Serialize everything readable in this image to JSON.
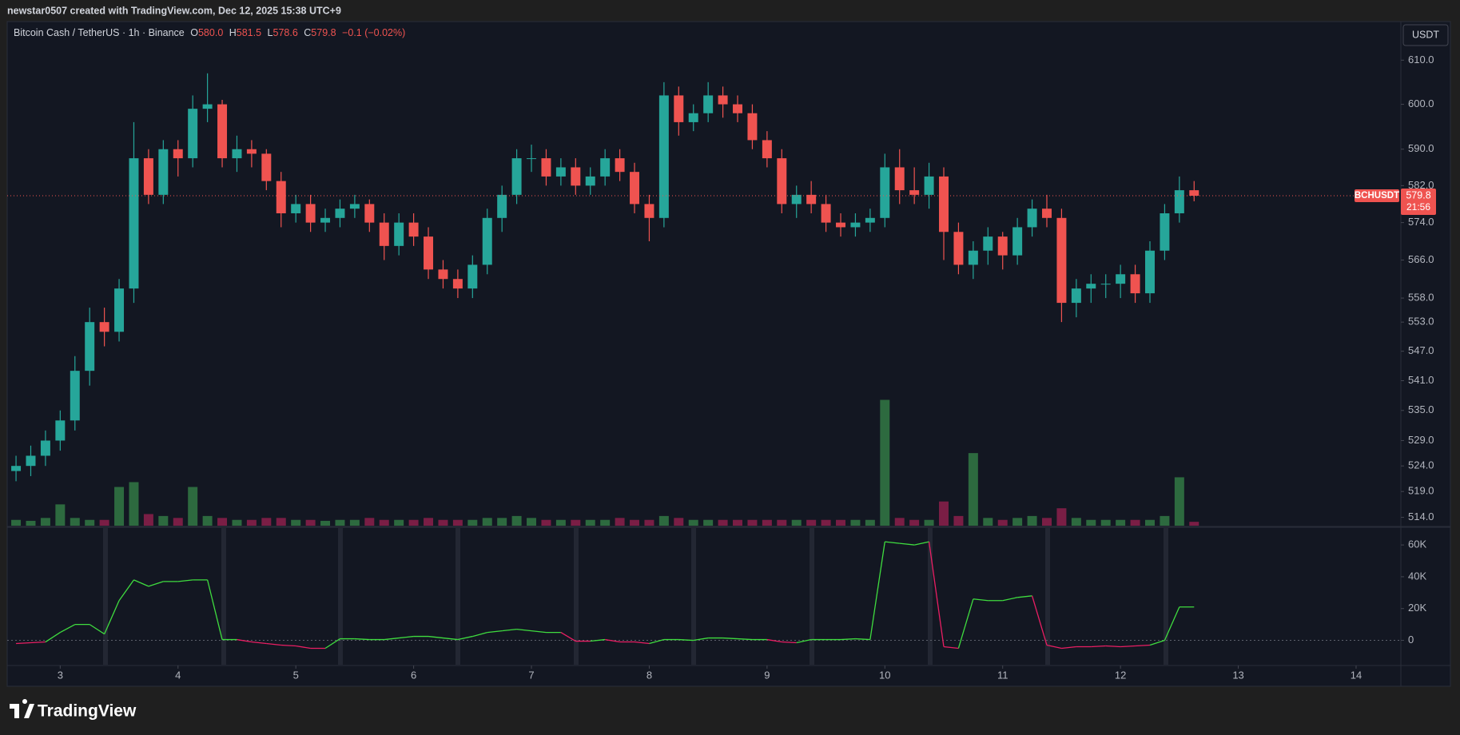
{
  "header": "newstar0507 created with TradingView.com, Dec 12, 2025 15:38 UTC+9",
  "legend": {
    "symbol": "Bitcoin Cash / TetherUS · 1h · Binance",
    "o_label": "O",
    "open": "580.0",
    "h_label": "H",
    "high": "581.5",
    "l_label": "L",
    "low": "578.6",
    "c_label": "C",
    "close": "579.8",
    "change": "−0.1 (−0.02%)"
  },
  "currency_button": "USDT",
  "price_line": {
    "label": "BCHUSDT",
    "value": 579.8,
    "countdown": "21:56",
    "color": "#ef5350"
  },
  "footer": "TradingView",
  "chart_data": [
    {
      "type": "candlestick",
      "log": true,
      "grid": false,
      "up_color": "#26a69a",
      "down_color": "#ef5350",
      "volume_up_color": "#2d6a3f",
      "volume_down_color": "#7a1e45",
      "x": [
        2.625,
        2.75,
        2.875,
        3,
        3.125,
        3.25,
        3.375,
        3.5,
        3.625,
        3.75,
        3.875,
        4,
        4.125,
        4.25,
        4.375,
        4.5,
        4.625,
        4.75,
        4.875,
        5,
        5.125,
        5.25,
        5.375,
        5.5,
        5.625,
        5.75,
        5.875,
        6,
        6.125,
        6.25,
        6.375,
        6.5,
        6.625,
        6.75,
        6.875,
        7,
        7.125,
        7.25,
        7.375,
        7.5,
        7.625,
        7.75,
        7.875,
        8,
        8.125,
        8.25,
        8.375,
        8.5,
        8.625,
        8.75,
        8.875,
        9,
        9.125,
        9.25,
        9.375,
        9.5,
        9.625,
        9.75,
        9.875,
        10,
        10.125,
        10.25,
        10.375,
        10.5,
        10.625,
        10.75,
        10.875,
        11,
        11.125,
        11.25,
        11.375,
        11.5,
        11.625,
        11.75,
        11.875,
        12,
        12.125,
        12.25,
        12.375,
        12.5,
        12.625
      ],
      "open": [
        523,
        524,
        526,
        529,
        533,
        543,
        553,
        551,
        560,
        588,
        580,
        590,
        588,
        599,
        600,
        588,
        590,
        589,
        583,
        576,
        578,
        574,
        575,
        577,
        578,
        574,
        569,
        574,
        571,
        564,
        562,
        560,
        565,
        575,
        580,
        588,
        588,
        584,
        586,
        582,
        584,
        588,
        585,
        578,
        575,
        602,
        596,
        598,
        602,
        600,
        598,
        592,
        588,
        578,
        580,
        578,
        574,
        573,
        574,
        575,
        586,
        581,
        580,
        584,
        572,
        565,
        568,
        571,
        567,
        573,
        577,
        575,
        557,
        560,
        561,
        561,
        563,
        559,
        568,
        576,
        581
      ],
      "high": [
        526,
        528,
        531,
        535,
        546,
        556,
        556,
        562,
        596,
        590,
        592,
        592,
        602,
        607,
        601,
        593,
        592,
        590,
        585,
        580,
        580,
        577,
        579,
        580,
        579,
        576,
        576,
        576,
        573,
        566,
        564,
        567,
        577,
        582,
        590,
        591,
        590,
        588,
        588,
        586,
        590,
        590,
        587,
        580,
        605,
        604,
        600,
        605,
        604,
        602,
        600,
        594,
        590,
        582,
        583,
        580,
        576,
        576,
        577,
        589,
        590,
        586,
        587,
        586,
        574,
        570,
        573,
        572,
        575,
        579,
        580,
        577,
        562,
        563,
        563,
        565,
        565,
        570,
        578,
        584,
        583
      ],
      "low": [
        521,
        522,
        524,
        527,
        531,
        540,
        548,
        549,
        557,
        578,
        578,
        584,
        586,
        596,
        586,
        585,
        586,
        581,
        573,
        574,
        572,
        572,
        573,
        575,
        572,
        566,
        567,
        569,
        562,
        560,
        558,
        558,
        563,
        572,
        578,
        585,
        582,
        582,
        580,
        580,
        582,
        583,
        576,
        570,
        573,
        593,
        594,
        596,
        597,
        596,
        590,
        586,
        576,
        575,
        576,
        572,
        571,
        571,
        572,
        573,
        578,
        578,
        577,
        566,
        563,
        562,
        565,
        564,
        565,
        571,
        573,
        553,
        554,
        557,
        558,
        558,
        557,
        557,
        566,
        574,
        578.6
      ],
      "close": [
        524,
        526,
        529,
        533,
        543,
        553,
        551,
        560,
        588,
        580,
        590,
        588,
        599,
        600,
        588,
        590,
        589,
        583,
        576,
        578,
        574,
        575,
        577,
        578,
        574,
        569,
        574,
        571,
        564,
        562,
        560,
        565,
        575,
        580,
        588,
        588,
        584,
        586,
        582,
        584,
        588,
        585,
        578,
        575,
        602,
        596,
        598,
        602,
        600,
        598,
        592,
        588,
        578,
        580,
        578,
        574,
        573,
        574,
        575,
        586,
        581,
        580,
        584,
        572,
        565,
        568,
        571,
        567,
        573,
        577,
        575,
        557,
        560,
        561,
        561,
        563,
        559,
        568,
        576,
        581,
        579.8
      ],
      "volume": [
        6,
        5,
        8,
        22,
        8,
        6,
        6,
        40,
        45,
        12,
        10,
        8,
        40,
        10,
        8,
        6,
        6,
        8,
        8,
        6,
        6,
        5,
        6,
        6,
        8,
        6,
        6,
        6,
        8,
        6,
        6,
        6,
        8,
        8,
        10,
        8,
        6,
        6,
        6,
        6,
        6,
        8,
        6,
        6,
        10,
        8,
        6,
        6,
        6,
        6,
        6,
        6,
        6,
        6,
        6,
        6,
        6,
        6,
        6,
        130,
        8,
        6,
        6,
        25,
        10,
        75,
        8,
        6,
        8,
        10,
        8,
        18,
        8,
        6,
        6,
        6,
        6,
        6,
        10,
        50,
        4
      ],
      "xlim": [
        2.55,
        14.38
      ],
      "xticks": [
        3,
        4,
        5,
        6,
        7,
        8,
        9,
        10,
        11,
        12,
        13,
        14
      ],
      "ylim": [
        512.4,
        618.7
      ],
      "yticks": [
        {
          "value": 610,
          "label": "610.0"
        },
        {
          "value": 600,
          "label": "600.0"
        },
        {
          "value": 590,
          "label": "590.0"
        },
        {
          "value": 582,
          "label": "582.0"
        },
        {
          "value": 574,
          "label": "574.0"
        },
        {
          "value": 566,
          "label": "566.0"
        },
        {
          "value": 558,
          "label": "558.0"
        },
        {
          "value": 553,
          "label": "553.0"
        },
        {
          "value": 547,
          "label": "547.0"
        },
        {
          "value": 541,
          "label": "541.0"
        },
        {
          "value": 535,
          "label": "535.0"
        },
        {
          "value": 529,
          "label": "529.0"
        },
        {
          "value": 524,
          "label": "524.0"
        },
        {
          "value": 519,
          "label": "519.0"
        },
        {
          "value": 514,
          "label": "514.0"
        }
      ]
    },
    {
      "type": "line",
      "zero_line": true,
      "up_color": "#3fdc3f",
      "down_color": "#e91e63",
      "x": [
        2.625,
        2.75,
        2.875,
        3,
        3.125,
        3.25,
        3.375,
        3.5,
        3.625,
        3.75,
        3.875,
        4,
        4.125,
        4.25,
        4.375,
        4.5,
        4.625,
        4.75,
        4.875,
        5,
        5.125,
        5.25,
        5.375,
        5.5,
        5.625,
        5.75,
        5.875,
        6,
        6.125,
        6.25,
        6.375,
        6.5,
        6.625,
        6.75,
        6.875,
        7,
        7.125,
        7.25,
        7.375,
        7.5,
        7.625,
        7.75,
        7.875,
        8,
        8.125,
        8.25,
        8.375,
        8.5,
        8.625,
        8.75,
        8.875,
        9,
        9.125,
        9.25,
        9.375,
        9.5,
        9.625,
        9.75,
        9.875,
        10,
        10.125,
        10.25,
        10.375,
        10.5,
        10.625,
        10.75,
        10.875,
        11,
        11.125,
        11.25,
        11.375,
        11.5,
        11.625,
        11.75,
        11.875,
        12,
        12.125,
        12.25,
        12.375,
        12.5,
        12.625
      ],
      "values": [
        -2000,
        -1500,
        -1000,
        5000,
        10000,
        10000,
        4000,
        25000,
        38000,
        34000,
        37000,
        37000,
        38000,
        38000,
        500,
        500,
        -1000,
        -2000,
        -3000,
        -3500,
        -5000,
        -5000,
        1000,
        1000,
        500,
        500,
        1500,
        2500,
        2500,
        1500,
        500,
        2500,
        5000,
        6000,
        7000,
        6000,
        5000,
        5000,
        -500,
        -500,
        500,
        -1000,
        -1000,
        -2000,
        500,
        500,
        0,
        1500,
        1500,
        1000,
        500,
        500,
        -1000,
        -1500,
        500,
        500,
        500,
        1000,
        500,
        62000,
        61000,
        60000,
        62000,
        -4000,
        -5000,
        26000,
        25000,
        25000,
        27000,
        28000,
        -3000,
        -5000,
        -4000,
        -4000,
        -3500,
        -4000,
        -3500,
        -3000,
        0,
        21000,
        21000
      ],
      "xlim": [
        2.55,
        14.38
      ],
      "ylim": [
        -15300,
        70600
      ],
      "yticks": [
        {
          "value": 60000,
          "label": "60K"
        },
        {
          "value": 40000,
          "label": "40K"
        },
        {
          "value": 20000,
          "label": "20K"
        },
        0
      ]
    }
  ]
}
